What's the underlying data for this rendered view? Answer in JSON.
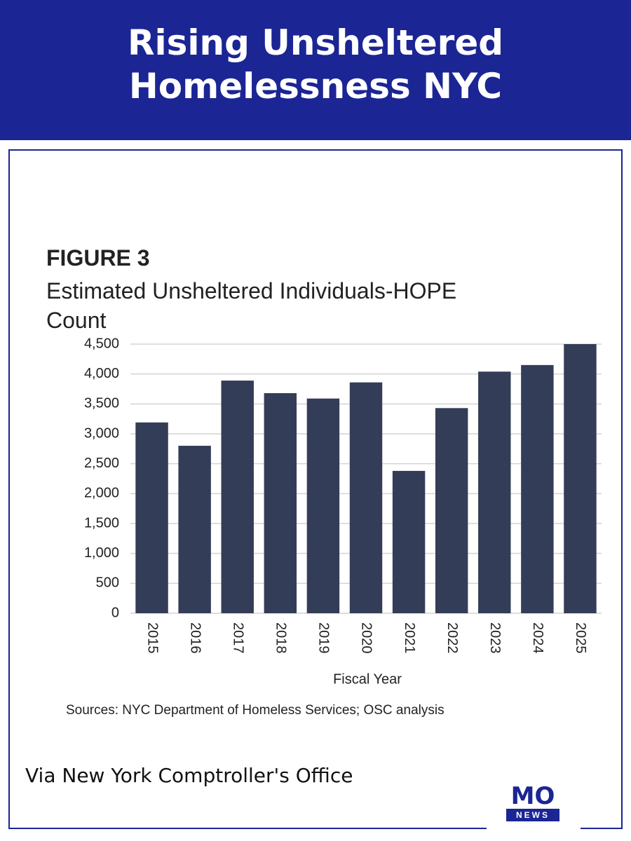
{
  "header": {
    "title": "Rising Unsheltered Homelessness NYC"
  },
  "chart_data": {
    "type": "bar",
    "figure_label": "FIGURE 3",
    "title": "Estimated Unsheltered Individuals-HOPE Count",
    "x_label": "Fiscal Year",
    "source": "Sources: NYC Department of Homeless Services; OSC analysis",
    "categories": [
      "2015",
      "2016",
      "2017",
      "2018",
      "2019",
      "2020",
      "2021",
      "2022",
      "2023",
      "2024",
      "2025"
    ],
    "values": [
      3190,
      2800,
      3890,
      3680,
      3590,
      3860,
      2380,
      3430,
      4040,
      4150,
      4500
    ],
    "color": "#333d57",
    "ylim": [
      0,
      4500
    ],
    "yticks": [
      0,
      500,
      {
        "value": 1000,
        "label": "1,000"
      },
      {
        "value": 1500,
        "label": "1,500"
      },
      {
        "value": 2000,
        "label": "2,000"
      },
      {
        "value": 2500,
        "label": "2,500"
      },
      {
        "value": 3000,
        "label": "3,000"
      },
      {
        "value": 3500,
        "label": "3,500"
      },
      {
        "value": 4000,
        "label": "4,000"
      },
      {
        "value": 4500,
        "label": "4,500"
      }
    ],
    "grid": true
  },
  "footer": {
    "credit": "Via New York Comptroller's Office",
    "logo_top": "MO",
    "logo_bottom": "NEWS"
  }
}
